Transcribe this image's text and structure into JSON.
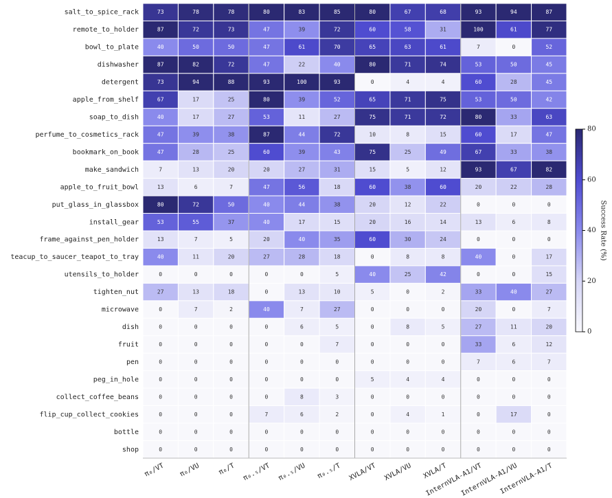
{
  "chart_data": {
    "type": "heatmap",
    "rows": [
      "salt_to_spice_rack",
      "remote_to_holder",
      "bowl_to_plate",
      "dishwasher",
      "detergent",
      "apple_from_shelf",
      "soap_to_dish",
      "perfume_to_cosmetics_rack",
      "bookmark_on_book",
      "make_sandwich",
      "apple_to_fruit_bowl",
      "put_glass_in_glassbox",
      "install_gear",
      "frame_against_pen_holder",
      "teacup_to_saucer_teapot_to_tray",
      "utensils_to_holder",
      "tighten_nut",
      "microwave",
      "dish",
      "fruit",
      "pen",
      "peg_in_hole",
      "collect_coffee_beans",
      "flip_cup_collect_cookies",
      "bottle",
      "shop"
    ],
    "columns": [
      "π₀/VT",
      "π₀/VU",
      "π₀/T",
      "π₀.₅/VT",
      "π₀.₅/VU",
      "π₀.₅/T",
      "XVLA/VT",
      "XVLA/VU",
      "XVLA/T",
      "InternVLA-A1/VT",
      "InternVLA-A1/VU",
      "InternVLA-A1/T"
    ],
    "values": [
      [
        73,
        78,
        78,
        80,
        83,
        85,
        80,
        67,
        68,
        93,
        94,
        87
      ],
      [
        87,
        72,
        73,
        47,
        39,
        72,
        60,
        58,
        31,
        100,
        61,
        77
      ],
      [
        40,
        50,
        50,
        47,
        61,
        70,
        65,
        63,
        61,
        7,
        0,
        52
      ],
      [
        87,
        82,
        72,
        47,
        22,
        40,
        80,
        71,
        74,
        53,
        50,
        45
      ],
      [
        73,
        94,
        88,
        93,
        100,
        93,
        0,
        4,
        4,
        60,
        28,
        45
      ],
      [
        67,
        17,
        25,
        80,
        39,
        52,
        65,
        71,
        75,
        53,
        50,
        42
      ],
      [
        40,
        17,
        27,
        53,
        11,
        27,
        75,
        71,
        72,
        80,
        33,
        63
      ],
      [
        47,
        39,
        38,
        87,
        44,
        72,
        10,
        8,
        15,
        60,
        17,
        47
      ],
      [
        47,
        28,
        25,
        60,
        39,
        43,
        75,
        25,
        49,
        67,
        33,
        38
      ],
      [
        7,
        13,
        20,
        20,
        27,
        31,
        15,
        5,
        12,
        93,
        67,
        82
      ],
      [
        13,
        6,
        7,
        47,
        56,
        18,
        60,
        38,
        60,
        20,
        22,
        28
      ],
      [
        80,
        72,
        50,
        40,
        44,
        38,
        20,
        12,
        22,
        0,
        0,
        0
      ],
      [
        53,
        55,
        37,
        40,
        17,
        15,
        20,
        16,
        14,
        13,
        6,
        8
      ],
      [
        13,
        7,
        5,
        20,
        40,
        35,
        60,
        30,
        24,
        0,
        0,
        0
      ],
      [
        40,
        11,
        20,
        27,
        28,
        18,
        0,
        8,
        8,
        40,
        0,
        17
      ],
      [
        0,
        0,
        0,
        0,
        0,
        5,
        40,
        25,
        42,
        0,
        0,
        15
      ],
      [
        27,
        13,
        18,
        0,
        13,
        10,
        5,
        0,
        2,
        33,
        40,
        27
      ],
      [
        0,
        7,
        2,
        40,
        7,
        27,
        0,
        0,
        0,
        20,
        0,
        7
      ],
      [
        0,
        0,
        0,
        0,
        6,
        5,
        0,
        8,
        5,
        27,
        11,
        20
      ],
      [
        0,
        0,
        0,
        0,
        0,
        7,
        0,
        0,
        0,
        33,
        6,
        12
      ],
      [
        0,
        0,
        0,
        0,
        0,
        0,
        0,
        0,
        0,
        7,
        6,
        7
      ],
      [
        0,
        0,
        0,
        0,
        0,
        0,
        5,
        4,
        4,
        0,
        0,
        0
      ],
      [
        0,
        0,
        0,
        0,
        8,
        3,
        0,
        0,
        0,
        0,
        0,
        0
      ],
      [
        0,
        0,
        0,
        7,
        6,
        2,
        0,
        4,
        1,
        0,
        17,
        0
      ],
      [
        0,
        0,
        0,
        0,
        0,
        0,
        0,
        0,
        0,
        0,
        0,
        0
      ],
      [
        0,
        0,
        0,
        0,
        0,
        0,
        0,
        0,
        0,
        0,
        0,
        0
      ]
    ],
    "colorbar_label": "Success Rate (%)",
    "clim": [
      0,
      80
    ],
    "cticks": [
      0,
      20,
      40,
      60,
      80
    ],
    "colorscale": [
      "#f8f8fc",
      "#d6d6f6",
      "#8a8aec",
      "#4f4cd0",
      "#2b2972"
    ]
  }
}
